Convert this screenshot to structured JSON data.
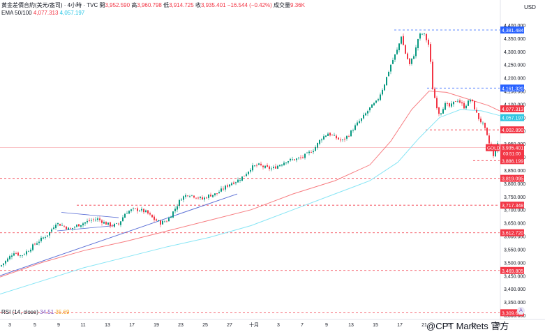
{
  "header": {
    "line1_a": "黄金差價合約(美元/盎司) · 4小時 · TVC",
    "open_label": "開",
    "open": "3,952.590",
    "high_label": "高",
    "high": "3,960.798",
    "low_label": "低",
    "low": "3,914.725",
    "close_label": "收",
    "close": "3,935.401",
    "change": "−16.544 (−0.42%)",
    "vol_label": "成交量",
    "vol": "9.36K",
    "ema_label": "EMA 50/100",
    "ema50": "4,077.313",
    "ema100": "4,057.197"
  },
  "currency": "USD",
  "rsi": {
    "label": "RSI (14, close)",
    "v1": "34.51",
    "v2": "35.69"
  },
  "watermark": "@CPT Markets 官方",
  "colors": {
    "up": "#089981",
    "down": "#f23645",
    "ema50": "#f77c80",
    "ema100": "#86e5f5",
    "trend": "#5b6fd6",
    "level": "#f23645",
    "blue_level": "#2962ff",
    "gold_tag": "#f23645"
  },
  "chart_data": {
    "type": "candlestick",
    "symbol": "GOLD",
    "ylim": [
      3280,
      4420
    ],
    "y_ticks": [
      "4,400.000",
      "4,350.000",
      "4,300.000",
      "4,250.000",
      "4,200.000",
      "4,150.000",
      "4,100.000",
      "4,050.000",
      "4,000.000",
      "3,950.000",
      "3,900.000",
      "3,850.000",
      "3,800.000",
      "3,750.000",
      "3,700.000",
      "3,650.000",
      "3,600.000",
      "3,550.000",
      "3,500.000",
      "3,450.000",
      "3,400.000",
      "3,350.000",
      "3,300.000"
    ],
    "x_ticks": [
      "3",
      "5",
      "9",
      "11",
      "13",
      "17",
      "19",
      "23",
      "25",
      "27",
      "十月",
      "3",
      "7",
      "9",
      "13",
      "15",
      "17",
      "21",
      "23",
      "25",
      "29"
    ],
    "price_levels": [
      {
        "label": "4,381.484",
        "value": 4381.5,
        "color": "blue"
      },
      {
        "label": "4,161.320",
        "value": 4161.3,
        "color": "blue"
      },
      {
        "label": "4,002.890",
        "value": 4002.9,
        "color": "red"
      },
      {
        "label": "3,886.199",
        "value": 3886.2,
        "color": "red"
      },
      {
        "label": "3,819.095",
        "value": 3819.1,
        "color": "red"
      },
      {
        "label": "3,717.348",
        "value": 3717.3,
        "color": "red"
      },
      {
        "label": "3,612.720",
        "value": 3612.7,
        "color": "red"
      },
      {
        "label": "3,469.805",
        "value": 3469.8,
        "color": "red"
      },
      {
        "label": "3,309.600",
        "value": 3309.6,
        "color": "red"
      }
    ],
    "ema_tags": [
      {
        "label": "4,077.313",
        "value": 4077.3,
        "series": "EMA 50"
      },
      {
        "label": "4,057.197",
        "value": 4057.2,
        "series": "EMA 100"
      }
    ],
    "current": {
      "label": "3,935.401",
      "sub": "03:51:00",
      "value": 3935.4,
      "name": "GOLD"
    },
    "close_path": [
      [
        0,
        3485
      ],
      [
        10,
        3510
      ],
      [
        20,
        3540
      ],
      [
        30,
        3525
      ],
      [
        40,
        3545
      ],
      [
        50,
        3570
      ],
      [
        60,
        3590
      ],
      [
        70,
        3610
      ],
      [
        80,
        3650
      ],
      [
        90,
        3640
      ],
      [
        100,
        3625
      ],
      [
        110,
        3640
      ],
      [
        120,
        3650
      ],
      [
        130,
        3660
      ],
      [
        140,
        3665
      ],
      [
        150,
        3650
      ],
      [
        160,
        3640
      ],
      [
        170,
        3645
      ],
      [
        180,
        3690
      ],
      [
        190,
        3700
      ],
      [
        200,
        3700
      ],
      [
        210,
        3690
      ],
      [
        220,
        3665
      ],
      [
        230,
        3650
      ],
      [
        240,
        3660
      ],
      [
        250,
        3700
      ],
      [
        260,
        3745
      ],
      [
        270,
        3760
      ],
      [
        280,
        3750
      ],
      [
        290,
        3740
      ],
      [
        300,
        3755
      ],
      [
        310,
        3760
      ],
      [
        320,
        3780
      ],
      [
        330,
        3800
      ],
      [
        340,
        3810
      ],
      [
        350,
        3830
      ],
      [
        360,
        3860
      ],
      [
        370,
        3870
      ],
      [
        380,
        3860
      ],
      [
        390,
        3855
      ],
      [
        400,
        3870
      ],
      [
        410,
        3885
      ],
      [
        420,
        3890
      ],
      [
        430,
        3895
      ],
      [
        440,
        3910
      ],
      [
        450,
        3930
      ],
      [
        460,
        3970
      ],
      [
        470,
        3990
      ],
      [
        480,
        3975
      ],
      [
        490,
        3960
      ],
      [
        500,
        3985
      ],
      [
        510,
        4020
      ],
      [
        520,
        4050
      ],
      [
        530,
        4085
      ],
      [
        540,
        4110
      ],
      [
        550,
        4170
      ],
      [
        560,
        4250
      ],
      [
        570,
        4310
      ],
      [
        575,
        4360
      ],
      [
        580,
        4300
      ],
      [
        587,
        4250
      ],
      [
        595,
        4300
      ],
      [
        600,
        4360
      ],
      [
        607,
        4370
      ],
      [
        615,
        4320
      ],
      [
        620,
        4160
      ],
      [
        625,
        4100
      ],
      [
        630,
        4060
      ],
      [
        637,
        4100
      ],
      [
        645,
        4090
      ],
      [
        655,
        4120
      ],
      [
        665,
        4090
      ],
      [
        675,
        4120
      ],
      [
        685,
        4050
      ],
      [
        693,
        4020
      ],
      [
        700,
        3960
      ],
      [
        707,
        3900
      ],
      [
        712,
        3950
      ],
      [
        716,
        3935
      ]
    ],
    "ema50_path": [
      [
        0,
        3445
      ],
      [
        60,
        3500
      ],
      [
        120,
        3545
      ],
      [
        180,
        3580
      ],
      [
        240,
        3620
      ],
      [
        300,
        3660
      ],
      [
        360,
        3700
      ],
      [
        420,
        3760
      ],
      [
        480,
        3810
      ],
      [
        530,
        3870
      ],
      [
        560,
        3960
      ],
      [
        590,
        4080
      ],
      [
        615,
        4150
      ],
      [
        640,
        4145
      ],
      [
        670,
        4120
      ],
      [
        700,
        4095
      ],
      [
        716,
        4075
      ]
    ],
    "ema100_path": [
      [
        0,
        3380
      ],
      [
        60,
        3430
      ],
      [
        120,
        3480
      ],
      [
        180,
        3520
      ],
      [
        240,
        3560
      ],
      [
        300,
        3595
      ],
      [
        360,
        3640
      ],
      [
        420,
        3700
      ],
      [
        480,
        3760
      ],
      [
        530,
        3810
      ],
      [
        570,
        3880
      ],
      [
        600,
        3970
      ],
      [
        630,
        4050
      ],
      [
        660,
        4080
      ],
      [
        690,
        4075
      ],
      [
        716,
        4057
      ]
    ]
  }
}
